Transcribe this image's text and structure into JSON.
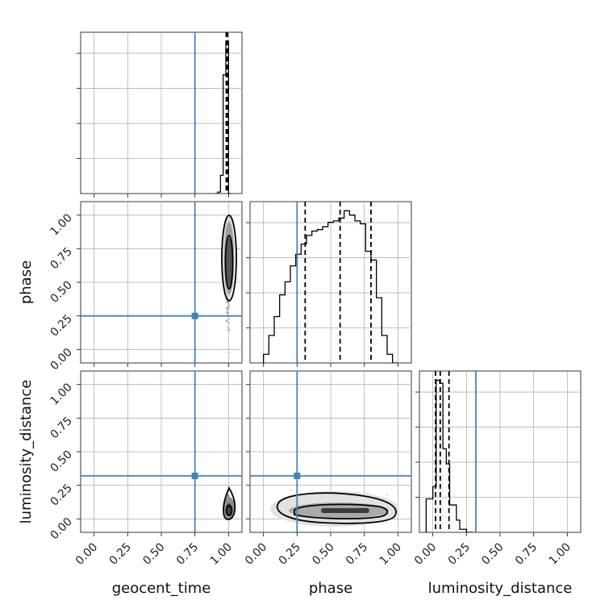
{
  "chart_data": {
    "type": "corner",
    "parameters": [
      "geocent_time",
      "phase",
      "luminosity_distance"
    ],
    "axis_labels": {
      "geocent_time": "geocent_time",
      "phase": "phase",
      "luminosity_distance": "luminosity_distance"
    },
    "range": [
      -0.1,
      1.1
    ],
    "tick_values": [
      0.0,
      0.25,
      0.5,
      0.75,
      1.0
    ],
    "tick_labels": [
      "0.00",
      "0.25",
      "0.50",
      "0.75",
      "1.00"
    ],
    "grid": true,
    "truth_color": "#4682b4",
    "truths": {
      "geocent_time": 0.75,
      "phase": 0.25,
      "luminosity_distance": 0.32
    },
    "histograms": {
      "geocent_time": {
        "bin_edges": [
          0.9,
          0.92,
          0.94,
          0.96,
          0.98,
          1.0,
          1.02
        ],
        "counts": [
          0,
          0.01,
          0.12,
          0.78,
          1.0,
          0
        ],
        "quantiles": [
          0.983,
          0.988,
          0.993
        ]
      },
      "phase": {
        "bin_edges": [
          0.0,
          0.04,
          0.08,
          0.12,
          0.16,
          0.2,
          0.24,
          0.28,
          0.32,
          0.36,
          0.4,
          0.44,
          0.48,
          0.52,
          0.56,
          0.6,
          0.64,
          0.68,
          0.72,
          0.76,
          0.8,
          0.84,
          0.88,
          0.92,
          0.96,
          1.0
        ],
        "counts": [
          0.06,
          0.19,
          0.32,
          0.47,
          0.56,
          0.67,
          0.75,
          0.82,
          0.88,
          0.91,
          0.92,
          0.94,
          0.97,
          0.98,
          1.0,
          1.05,
          1.02,
          0.98,
          0.96,
          0.77,
          0.71,
          0.45,
          0.19,
          0.06,
          0.0
        ],
        "quantiles": [
          0.31,
          0.57,
          0.8
        ]
      },
      "luminosity_distance": {
        "bin_edges": [
          -0.05,
          0.0,
          0.025,
          0.05,
          0.075,
          0.1,
          0.125,
          0.15,
          0.175,
          0.2,
          0.25,
          0.3
        ],
        "counts": [
          0.22,
          0.3,
          1.0,
          0.98,
          0.55,
          0.45,
          0.18,
          0.18,
          0.08,
          0.02,
          0.0
        ],
        "quantiles": [
          0.02,
          0.055,
          0.12
        ]
      }
    }
  }
}
